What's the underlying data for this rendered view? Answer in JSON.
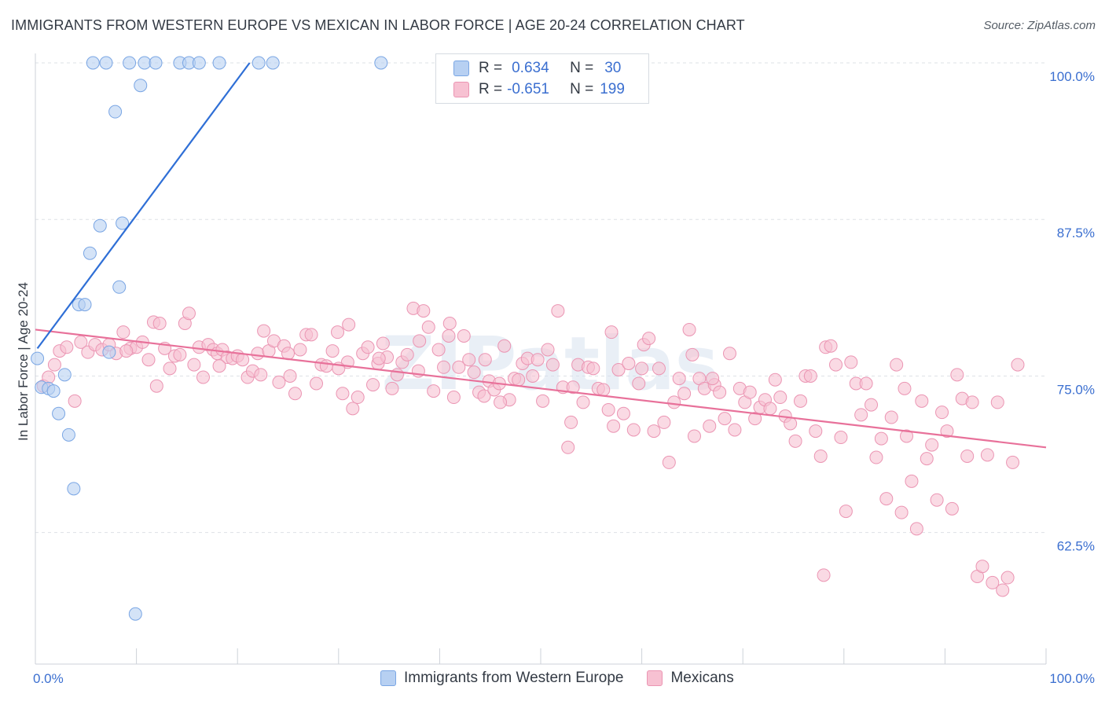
{
  "title": "IMMIGRANTS FROM WESTERN EUROPE VS MEXICAN IN LABOR FORCE | AGE 20-24 CORRELATION CHART",
  "source": "Source: ZipAtlas.com",
  "watermark": "ZIPatlas",
  "legend": {
    "r_label": "R =",
    "n_label": "N =",
    "rows": [
      {
        "r": "0.634",
        "n": "30"
      },
      {
        "r": "-0.651",
        "n": "199"
      }
    ]
  },
  "bottom_legend": [
    "Immigrants from Western Europe",
    "Mexicans"
  ],
  "colors": {
    "blue_fill": "#b7d0f2",
    "blue_stroke": "#7aa6e4",
    "blue_line": "#2f6fd6",
    "pink_fill": "#f7c1d2",
    "pink_stroke": "#eb95b3",
    "pink_line": "#e8719a",
    "tick_text": "#3b6fd0",
    "grid": "#dde1e6"
  },
  "chart_data": {
    "type": "scatter",
    "title": "IMMIGRANTS FROM WESTERN EUROPE VS MEXICAN IN LABOR FORCE | AGE 20-24 CORRELATION CHART",
    "xlabel": "",
    "ylabel": "In Labor Force | Age 20-24",
    "xlim": [
      0,
      100
    ],
    "ylim": [
      52,
      101
    ],
    "x_tick_labels": [
      "0.0%",
      "100.0%"
    ],
    "y_ticks": [
      62.5,
      75.0,
      87.5,
      100.0
    ],
    "y_tick_labels": [
      "62.5%",
      "75.0%",
      "87.5%",
      "100.0%"
    ],
    "grid": true,
    "legend_position": "top-center",
    "series": [
      {
        "name": "Immigrants from Western Europe",
        "r": 0.634,
        "n": 30,
        "trend": {
          "x": [
            0.2,
            21.2
          ],
          "y": [
            77.2,
            100.0
          ]
        },
        "points": [
          [
            5.7,
            100
          ],
          [
            7.0,
            100
          ],
          [
            9.3,
            100
          ],
          [
            10.8,
            100
          ],
          [
            11.9,
            100
          ],
          [
            14.3,
            100
          ],
          [
            15.2,
            100
          ],
          [
            16.2,
            100
          ],
          [
            18.2,
            100
          ],
          [
            22.1,
            100
          ],
          [
            23.5,
            100
          ],
          [
            34.2,
            100
          ],
          [
            10.4,
            98.2
          ],
          [
            7.9,
            96.1
          ],
          [
            8.6,
            87.2
          ],
          [
            6.4,
            87.0
          ],
          [
            5.4,
            84.8
          ],
          [
            8.3,
            82.1
          ],
          [
            4.3,
            80.7
          ],
          [
            4.9,
            80.7
          ],
          [
            0.2,
            76.4
          ],
          [
            7.3,
            76.9
          ],
          [
            2.9,
            75.1
          ],
          [
            0.6,
            74.1
          ],
          [
            1.3,
            74.0
          ],
          [
            1.8,
            73.8
          ],
          [
            2.3,
            72.0
          ],
          [
            3.3,
            70.3
          ],
          [
            3.8,
            66.0
          ],
          [
            9.9,
            56.0
          ]
        ]
      },
      {
        "name": "Mexicans",
        "r": -0.651,
        "n": 199,
        "trend": {
          "x": [
            0,
            100
          ],
          "y": [
            78.7,
            69.3
          ]
        },
        "points": [
          [
            0.8,
            74.2
          ],
          [
            1.3,
            74.9
          ],
          [
            1.9,
            75.9
          ],
          [
            2.4,
            77.0
          ],
          [
            3.1,
            77.3
          ],
          [
            3.9,
            73.0
          ],
          [
            4.5,
            77.7
          ],
          [
            5.2,
            76.9
          ],
          [
            5.9,
            77.5
          ],
          [
            6.6,
            77.1
          ],
          [
            7.3,
            77.5
          ],
          [
            8.0,
            76.8
          ],
          [
            8.7,
            78.5
          ],
          [
            9.4,
            77.2
          ],
          [
            10.0,
            77.3
          ],
          [
            10.6,
            77.7
          ],
          [
            11.2,
            76.3
          ],
          [
            11.7,
            79.3
          ],
          [
            12.3,
            79.2
          ],
          [
            12.8,
            77.2
          ],
          [
            13.3,
            75.6
          ],
          [
            13.8,
            76.6
          ],
          [
            14.3,
            76.7
          ],
          [
            14.8,
            79.2
          ],
          [
            15.2,
            80.0
          ],
          [
            15.7,
            75.9
          ],
          [
            16.2,
            77.3
          ],
          [
            16.6,
            74.9
          ],
          [
            17.1,
            77.5
          ],
          [
            17.6,
            77.1
          ],
          [
            18.0,
            76.8
          ],
          [
            18.5,
            77.1
          ],
          [
            19.0,
            76.5
          ],
          [
            19.5,
            76.4
          ],
          [
            20.0,
            76.6
          ],
          [
            20.5,
            76.3
          ],
          [
            21.0,
            74.9
          ],
          [
            21.5,
            75.4
          ],
          [
            22.0,
            76.8
          ],
          [
            22.6,
            78.6
          ],
          [
            23.1,
            77.0
          ],
          [
            23.6,
            77.8
          ],
          [
            24.1,
            74.5
          ],
          [
            24.6,
            77.4
          ],
          [
            25.2,
            75.0
          ],
          [
            25.7,
            73.6
          ],
          [
            26.2,
            77.1
          ],
          [
            26.8,
            78.3
          ],
          [
            27.3,
            78.3
          ],
          [
            27.8,
            74.4
          ],
          [
            28.3,
            75.9
          ],
          [
            28.8,
            75.8
          ],
          [
            29.4,
            77.0
          ],
          [
            29.9,
            78.5
          ],
          [
            30.4,
            73.6
          ],
          [
            30.9,
            76.1
          ],
          [
            31.4,
            72.4
          ],
          [
            31.9,
            73.3
          ],
          [
            32.4,
            76.8
          ],
          [
            32.9,
            77.3
          ],
          [
            33.4,
            74.3
          ],
          [
            33.9,
            76.0
          ],
          [
            34.4,
            77.6
          ],
          [
            34.8,
            76.5
          ],
          [
            35.3,
            74.0
          ],
          [
            35.8,
            75.1
          ],
          [
            36.3,
            76.1
          ],
          [
            36.8,
            76.7
          ],
          [
            37.4,
            80.4
          ],
          [
            37.9,
            75.4
          ],
          [
            38.4,
            80.2
          ],
          [
            38.9,
            78.9
          ],
          [
            39.4,
            73.8
          ],
          [
            39.9,
            77.1
          ],
          [
            40.4,
            75.7
          ],
          [
            40.9,
            78.2
          ],
          [
            41.4,
            73.3
          ],
          [
            41.9,
            75.7
          ],
          [
            42.4,
            78.2
          ],
          [
            42.9,
            76.3
          ],
          [
            43.4,
            75.3
          ],
          [
            43.9,
            73.7
          ],
          [
            44.4,
            73.4
          ],
          [
            44.9,
            74.6
          ],
          [
            45.4,
            73.9
          ],
          [
            45.9,
            74.4
          ],
          [
            46.4,
            77.4
          ],
          [
            46.9,
            73.1
          ],
          [
            47.4,
            74.8
          ],
          [
            47.8,
            74.7
          ],
          [
            48.2,
            76.0
          ],
          [
            48.7,
            76.4
          ],
          [
            49.2,
            75.0
          ],
          [
            49.7,
            76.3
          ],
          [
            50.2,
            73.0
          ],
          [
            50.7,
            77.1
          ],
          [
            51.2,
            75.9
          ],
          [
            51.7,
            80.2
          ],
          [
            52.2,
            74.1
          ],
          [
            52.7,
            69.3
          ],
          [
            53.2,
            74.1
          ],
          [
            53.7,
            75.9
          ],
          [
            54.2,
            72.9
          ],
          [
            54.7,
            75.7
          ],
          [
            55.2,
            75.6
          ],
          [
            55.7,
            74.0
          ],
          [
            56.2,
            73.9
          ],
          [
            56.7,
            72.3
          ],
          [
            57.2,
            71.0
          ],
          [
            57.7,
            75.5
          ],
          [
            58.2,
            72.0
          ],
          [
            58.7,
            76.0
          ],
          [
            59.2,
            70.7
          ],
          [
            59.7,
            74.4
          ],
          [
            60.2,
            77.5
          ],
          [
            60.7,
            78.0
          ],
          [
            61.2,
            70.6
          ],
          [
            61.7,
            75.6
          ],
          [
            62.2,
            71.3
          ],
          [
            62.7,
            68.1
          ],
          [
            63.2,
            72.9
          ],
          [
            63.7,
            74.8
          ],
          [
            64.2,
            73.6
          ],
          [
            64.7,
            78.7
          ],
          [
            65.2,
            70.2
          ],
          [
            65.7,
            74.8
          ],
          [
            66.2,
            74.0
          ],
          [
            66.7,
            71.0
          ],
          [
            67.2,
            74.3
          ],
          [
            67.7,
            73.7
          ],
          [
            68.2,
            71.6
          ],
          [
            68.7,
            76.8
          ],
          [
            69.2,
            70.7
          ],
          [
            69.7,
            74.0
          ],
          [
            70.2,
            72.9
          ],
          [
            70.7,
            73.7
          ],
          [
            71.2,
            71.6
          ],
          [
            71.7,
            72.5
          ],
          [
            72.2,
            73.1
          ],
          [
            72.7,
            72.4
          ],
          [
            73.2,
            74.7
          ],
          [
            73.7,
            73.3
          ],
          [
            74.2,
            71.8
          ],
          [
            74.7,
            71.2
          ],
          [
            75.2,
            69.8
          ],
          [
            75.7,
            73.0
          ],
          [
            76.2,
            75.0
          ],
          [
            76.7,
            75.0
          ],
          [
            77.2,
            70.6
          ],
          [
            77.7,
            68.6
          ],
          [
            78.2,
            77.3
          ],
          [
            78.7,
            77.4
          ],
          [
            79.2,
            75.9
          ],
          [
            79.7,
            70.1
          ],
          [
            80.2,
            64.2
          ],
          [
            80.7,
            76.1
          ],
          [
            81.2,
            74.4
          ],
          [
            81.7,
            71.9
          ],
          [
            82.2,
            74.4
          ],
          [
            82.7,
            72.7
          ],
          [
            83.2,
            68.5
          ],
          [
            83.7,
            70.0
          ],
          [
            84.2,
            65.2
          ],
          [
            84.7,
            71.7
          ],
          [
            85.2,
            75.9
          ],
          [
            85.7,
            64.1
          ],
          [
            86.2,
            70.2
          ],
          [
            86.7,
            66.6
          ],
          [
            87.2,
            62.8
          ],
          [
            87.7,
            73.0
          ],
          [
            88.2,
            68.4
          ],
          [
            88.7,
            69.5
          ],
          [
            89.2,
            65.1
          ],
          [
            89.7,
            72.1
          ],
          [
            90.2,
            70.6
          ],
          [
            90.7,
            64.4
          ],
          [
            91.2,
            75.1
          ],
          [
            91.7,
            73.2
          ],
          [
            92.2,
            68.6
          ],
          [
            92.7,
            72.9
          ],
          [
            93.2,
            59.0
          ],
          [
            93.7,
            59.8
          ],
          [
            94.2,
            68.7
          ],
          [
            94.7,
            58.5
          ],
          [
            95.2,
            72.9
          ],
          [
            95.7,
            57.9
          ],
          [
            96.2,
            58.9
          ],
          [
            96.7,
            68.1
          ],
          [
            97.2,
            75.9
          ],
          [
            22.3,
            75.1
          ],
          [
            60.0,
            75.6
          ],
          [
            65.0,
            76.7
          ],
          [
            38.0,
            77.8
          ],
          [
            46.0,
            72.9
          ],
          [
            53.0,
            71.3
          ],
          [
            57.0,
            78.5
          ],
          [
            78.0,
            59.1
          ],
          [
            86.0,
            74.0
          ],
          [
            67.0,
            74.8
          ],
          [
            25.0,
            76.8
          ],
          [
            31.0,
            79.1
          ],
          [
            9.0,
            77.0
          ],
          [
            12.0,
            74.2
          ],
          [
            18.2,
            75.8
          ],
          [
            30.0,
            75.6
          ],
          [
            41.0,
            79.2
          ],
          [
            34.0,
            76.4
          ],
          [
            44.5,
            76.3
          ]
        ]
      }
    ]
  }
}
